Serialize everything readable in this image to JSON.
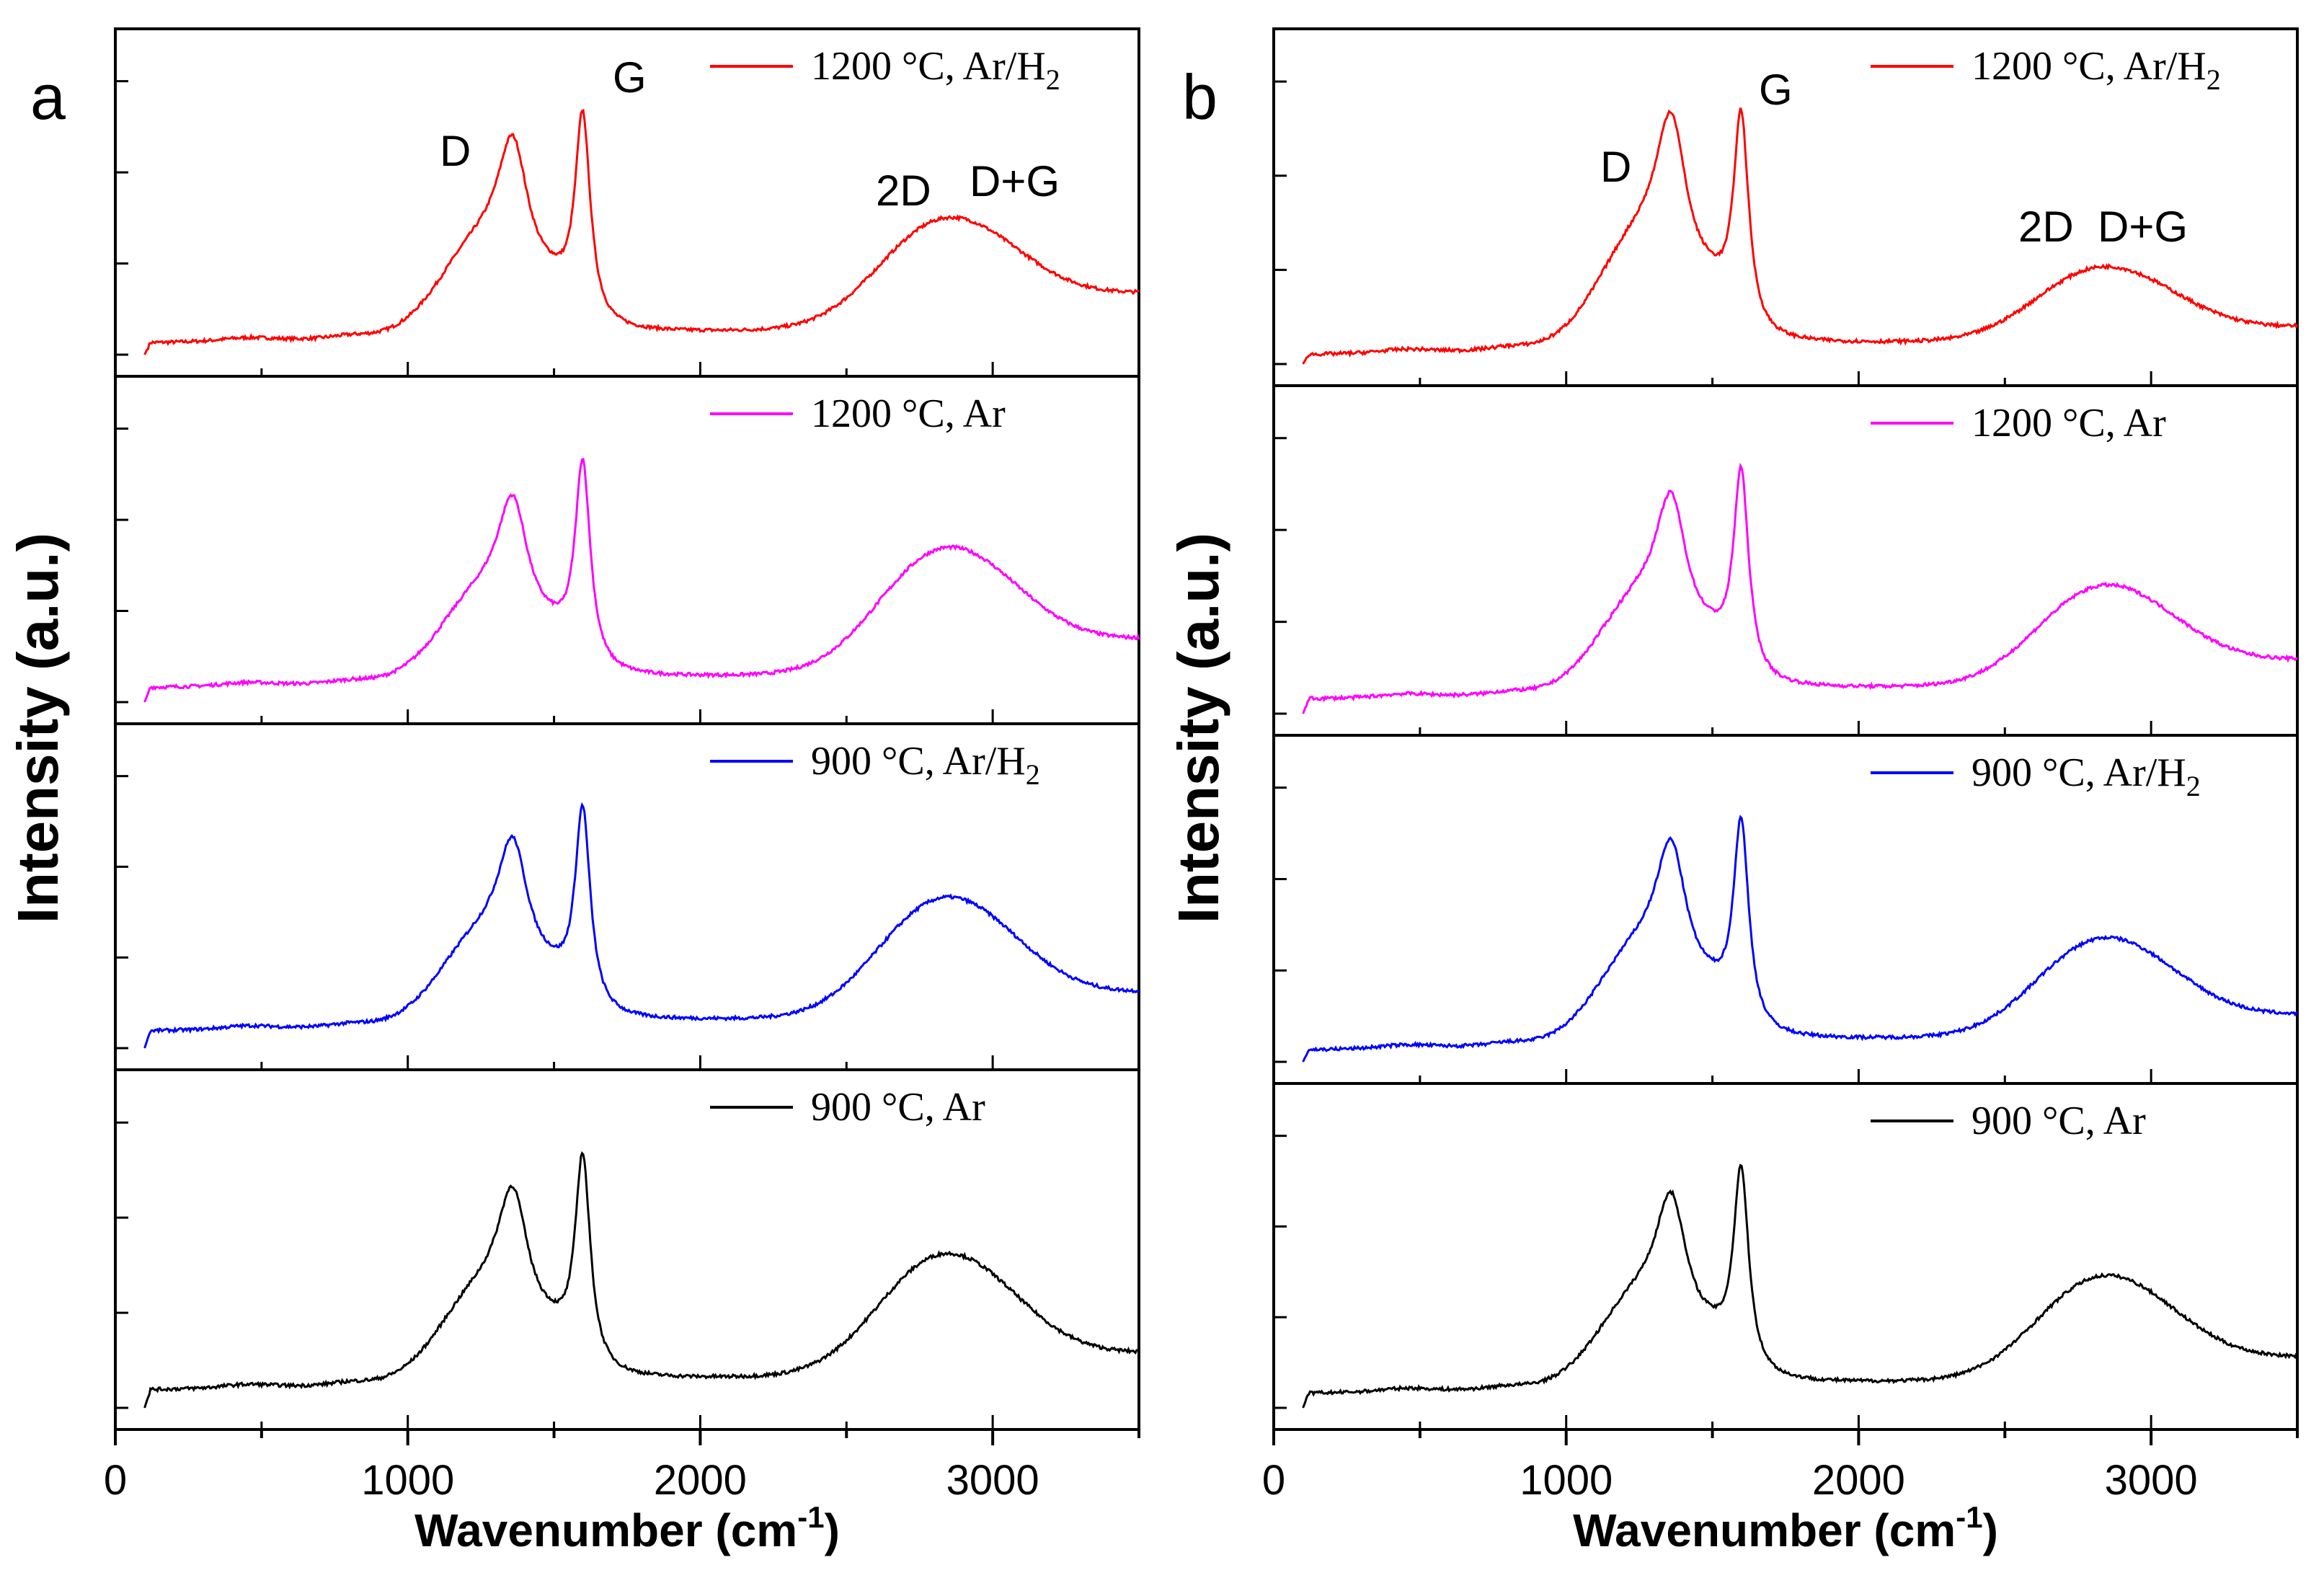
{
  "chart_data": [
    {
      "type": "line",
      "panel": "a",
      "xlabel": "Wavenumber (cm",
      "xlabel_sup": "-1",
      "xlabel_close": ")",
      "ylabel": "Intensity (a.u.)",
      "xlim": [
        0,
        3500
      ],
      "xticks": [
        "0",
        "1000",
        "2000",
        "3000"
      ],
      "peak_labels": [
        "D",
        "G",
        "2D",
        "D+G"
      ],
      "series": [
        {
          "name": "1200 °C, Ar/H",
          "name_sub": "2",
          "color": "#ff0000",
          "d_height": 0.83,
          "g_height": 1.0,
          "baseline": 0.04,
          "broad_height": 0.33,
          "tail": 0.3
        },
        {
          "name": "1200 °C, Ar",
          "name_sub": "",
          "color": "#ff00ff",
          "d_height": 0.78,
          "g_height": 1.0,
          "baseline": 0.05,
          "broad_height": 0.38,
          "tail": 0.3
        },
        {
          "name": "900 °C, Ar/H",
          "name_sub": "2",
          "color": "#0000ff",
          "d_height": 0.8,
          "g_height": 1.0,
          "baseline": 0.06,
          "broad_height": 0.37,
          "tail": 0.23
        },
        {
          "name": "900 °C, Ar",
          "name_sub": "",
          "color": "#000000",
          "d_height": 0.8,
          "g_height": 1.0,
          "baseline": 0.06,
          "broad_height": 0.36,
          "tail": 0.2
        }
      ]
    },
    {
      "type": "line",
      "panel": "b",
      "xlabel": "Wavenumber (cm",
      "xlabel_sup": "-1",
      "xlabel_close": ")",
      "ylabel": "Intensity (a.u.)",
      "xlim": [
        0,
        3500
      ],
      "xticks": [
        "0",
        "1000",
        "2000",
        "3000"
      ],
      "peak_labels": [
        "D",
        "G",
        "2D",
        "D+G"
      ],
      "series": [
        {
          "name": "1200 °C, Ar/H",
          "name_sub": "2",
          "color": "#ff0000",
          "d_height": 0.93,
          "g_height": 1.0,
          "baseline": 0.03,
          "broad_height": 0.22,
          "tail": 0.1
        },
        {
          "name": "1200 °C, Ar",
          "name_sub": "",
          "color": "#ff00ff",
          "d_height": 0.83,
          "g_height": 1.0,
          "baseline": 0.05,
          "broad_height": 0.3,
          "tail": 0.22
        },
        {
          "name": "900 °C, Ar/H",
          "name_sub": "2",
          "color": "#0000ff",
          "d_height": 0.84,
          "g_height": 1.0,
          "baseline": 0.04,
          "broad_height": 0.3,
          "tail": 0.18
        },
        {
          "name": "900 °C, Ar",
          "name_sub": "",
          "color": "#000000",
          "d_height": 0.82,
          "g_height": 1.0,
          "baseline": 0.05,
          "broad_height": 0.32,
          "tail": 0.2
        }
      ]
    }
  ]
}
